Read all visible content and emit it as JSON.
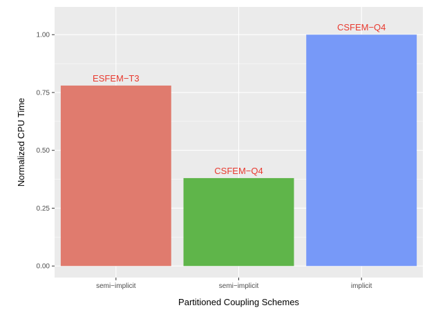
{
  "chart_data": {
    "type": "bar",
    "categories": [
      "semi−implicit",
      "semi−implicit",
      "implicit"
    ],
    "values": [
      0.78,
      0.38,
      1.0
    ],
    "bar_labels": [
      "ESFEM−T3",
      "CSFEM−Q4",
      "CSFEM−Q4"
    ],
    "colors": [
      "#e07b6e",
      "#5fb54a",
      "#7799f8"
    ],
    "label_color": "#e8392e",
    "panel_color": "#ebebeb",
    "grid_color": "#ffffff",
    "title": "",
    "xlabel": "Partitioned Coupling Schemes",
    "ylabel": "Normalized CPU Time",
    "ylim": [
      -0.05,
      1.12
    ],
    "yticks": [
      0.0,
      0.25,
      0.5,
      0.75,
      1.0
    ],
    "ytick_labels": [
      "0.00",
      "0.25",
      "0.50",
      "0.75",
      "1.00"
    ],
    "grid": true,
    "legend": "none"
  }
}
